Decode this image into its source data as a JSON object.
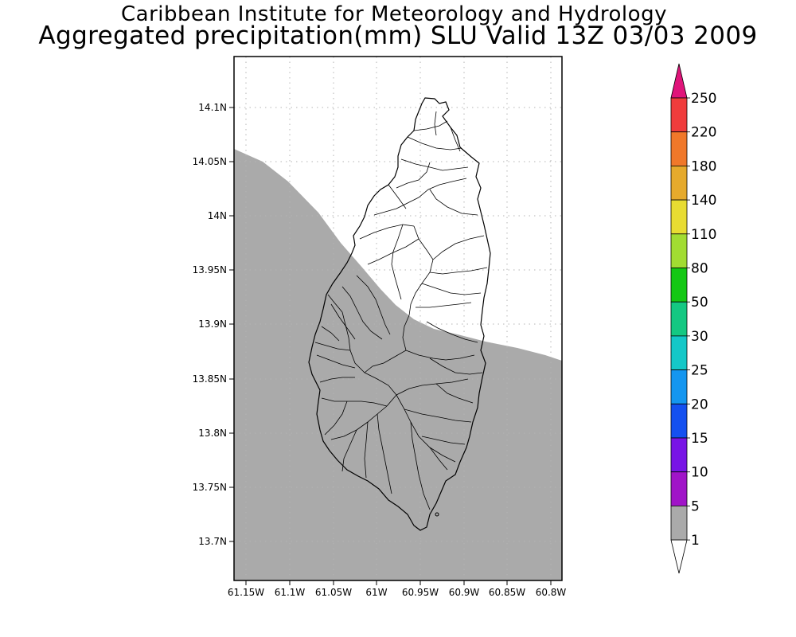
{
  "header": {
    "title": "Caribbean Institute for Meteorology and Hydrology",
    "subtitle": "Aggregated precipitation(mm) SLU Valid 13Z 03/03 2009"
  },
  "map": {
    "lat_labels": [
      "14.1N",
      "14.05N",
      "14N",
      "13.95N",
      "13.9N",
      "13.85N",
      "13.8N",
      "13.75N",
      "13.7N"
    ],
    "lon_labels": [
      "61.15W",
      "61.1W",
      "61.05W",
      "61W",
      "60.95W",
      "60.9W",
      "60.85W",
      "60.8W"
    ],
    "grid": "dotted",
    "shaded_class_color": "#aaaaaa"
  },
  "legend": {
    "labels": [
      "250",
      "220",
      "180",
      "140",
      "110",
      "80",
      "50",
      "30",
      "25",
      "20",
      "15",
      "10",
      "5",
      "1"
    ],
    "colors": {
      "top_arrow": "#e0147a",
      "220-250": "#f03c3c",
      "180-220": "#f0782a",
      "140-180": "#e6aa2c",
      "110-140": "#e8dc32",
      "80-110": "#a2dc32",
      "50-80": "#14c814",
      "30-50": "#14c882",
      "25-30": "#14c8c8",
      "20-25": "#1496f0",
      "15-20": "#1450f0",
      "10-15": "#7814e6",
      "5-10": "#a014c8",
      "1-5": "#aaaaaa",
      "below_1": "#ffffff"
    }
  }
}
